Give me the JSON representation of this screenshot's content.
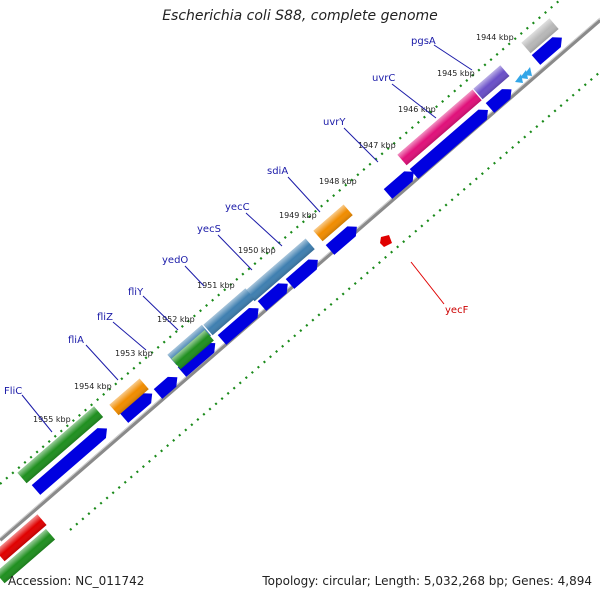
{
  "title": "Escherichia coli S88, complete genome",
  "footer": {
    "accession": "Accession: NC_011742",
    "topology": "Topology: circular; Length: 5,032,268 bp; Genes: 4,894"
  },
  "kbp_labels": [
    "1944 kbp",
    "1945 kbp",
    "1946 kbp",
    "1947 kbp",
    "1948 kbp",
    "1949 kbp",
    "1950 kbp",
    "1951 kbp",
    "1952 kbp",
    "1953 kbp",
    "1954 kbp",
    "1955 kbp"
  ],
  "gene_labels": [
    "pgsA",
    "uvrC",
    "uvrY",
    "sdiA",
    "yecC",
    "yecS",
    "yedO",
    "fliY",
    "fliZ",
    "fliA",
    "FliC",
    "yecF"
  ],
  "colors": {
    "blue_gene": "#0000e0",
    "orange_gene": "#f08c00",
    "green_gene": "#1f8f1f",
    "pink_gene": "#e0107a",
    "purple_gene": "#6a4fc8",
    "steel_gene": "#3f7fb0",
    "red_gene": "#e00000",
    "grey_gene": "#b8b8b8",
    "backbone": "#777777",
    "tick": "#1a8a1a"
  }
}
